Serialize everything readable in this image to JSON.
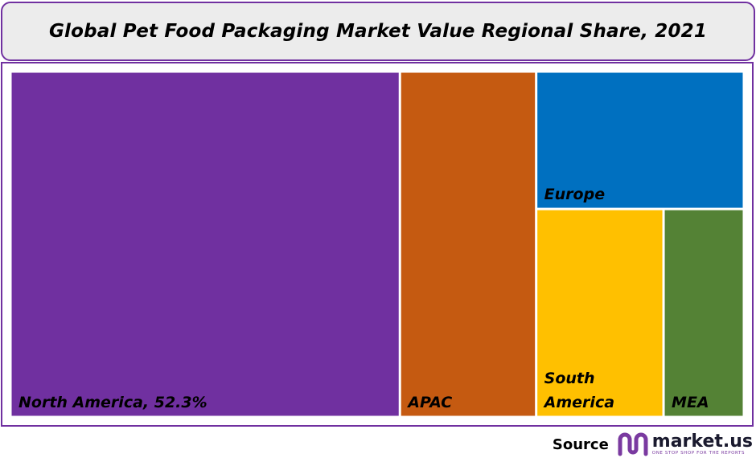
{
  "title": "Global Pet Food Packaging Market Value Regional Share, 2021",
  "chart_data": {
    "type": "treemap",
    "title": "Global Pet Food Packaging Market Value Regional Share, 2021",
    "items": [
      {
        "name": "North America",
        "label": "North America, 52.3%",
        "value": 52.3,
        "color": "#7030a0"
      },
      {
        "name": "APAC",
        "label": "APAC",
        "value": 18.3,
        "color": "#c55a11"
      },
      {
        "name": "Europe",
        "label": "Europe",
        "value": 11.1,
        "color": "#0070c0"
      },
      {
        "name": "South America",
        "label": "South America",
        "value": 10.3,
        "color": "#ffc000"
      },
      {
        "name": "MEA",
        "label": "MEA",
        "value": 6.5,
        "color": "#548235"
      }
    ]
  },
  "source": {
    "label": "Source",
    "brand": "market.us",
    "tagline": "ONE STOP SHOP FOR THE REPORTS",
    "brand_color": "#7a3aa0"
  }
}
